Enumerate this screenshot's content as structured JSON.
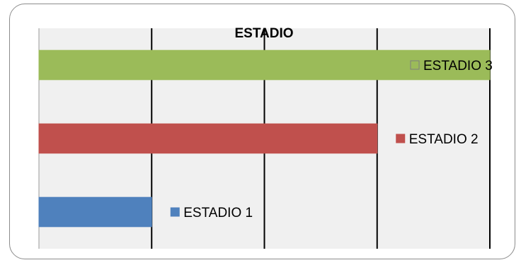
{
  "chart_data": {
    "type": "bar",
    "orientation": "horizontal",
    "title": "ESTADIO",
    "xlabel": "",
    "ylabel": "",
    "xlim": [
      0,
      4
    ],
    "grid": true,
    "legend": "data-labels",
    "series": [
      {
        "name": "ESTADIO 1",
        "value": 1,
        "color": "#4f81bd"
      },
      {
        "name": "ESTADIO 2",
        "value": 3,
        "color": "#c0504d"
      },
      {
        "name": "ESTADIO 3",
        "value": 4,
        "color": "#9bbb59"
      }
    ]
  }
}
